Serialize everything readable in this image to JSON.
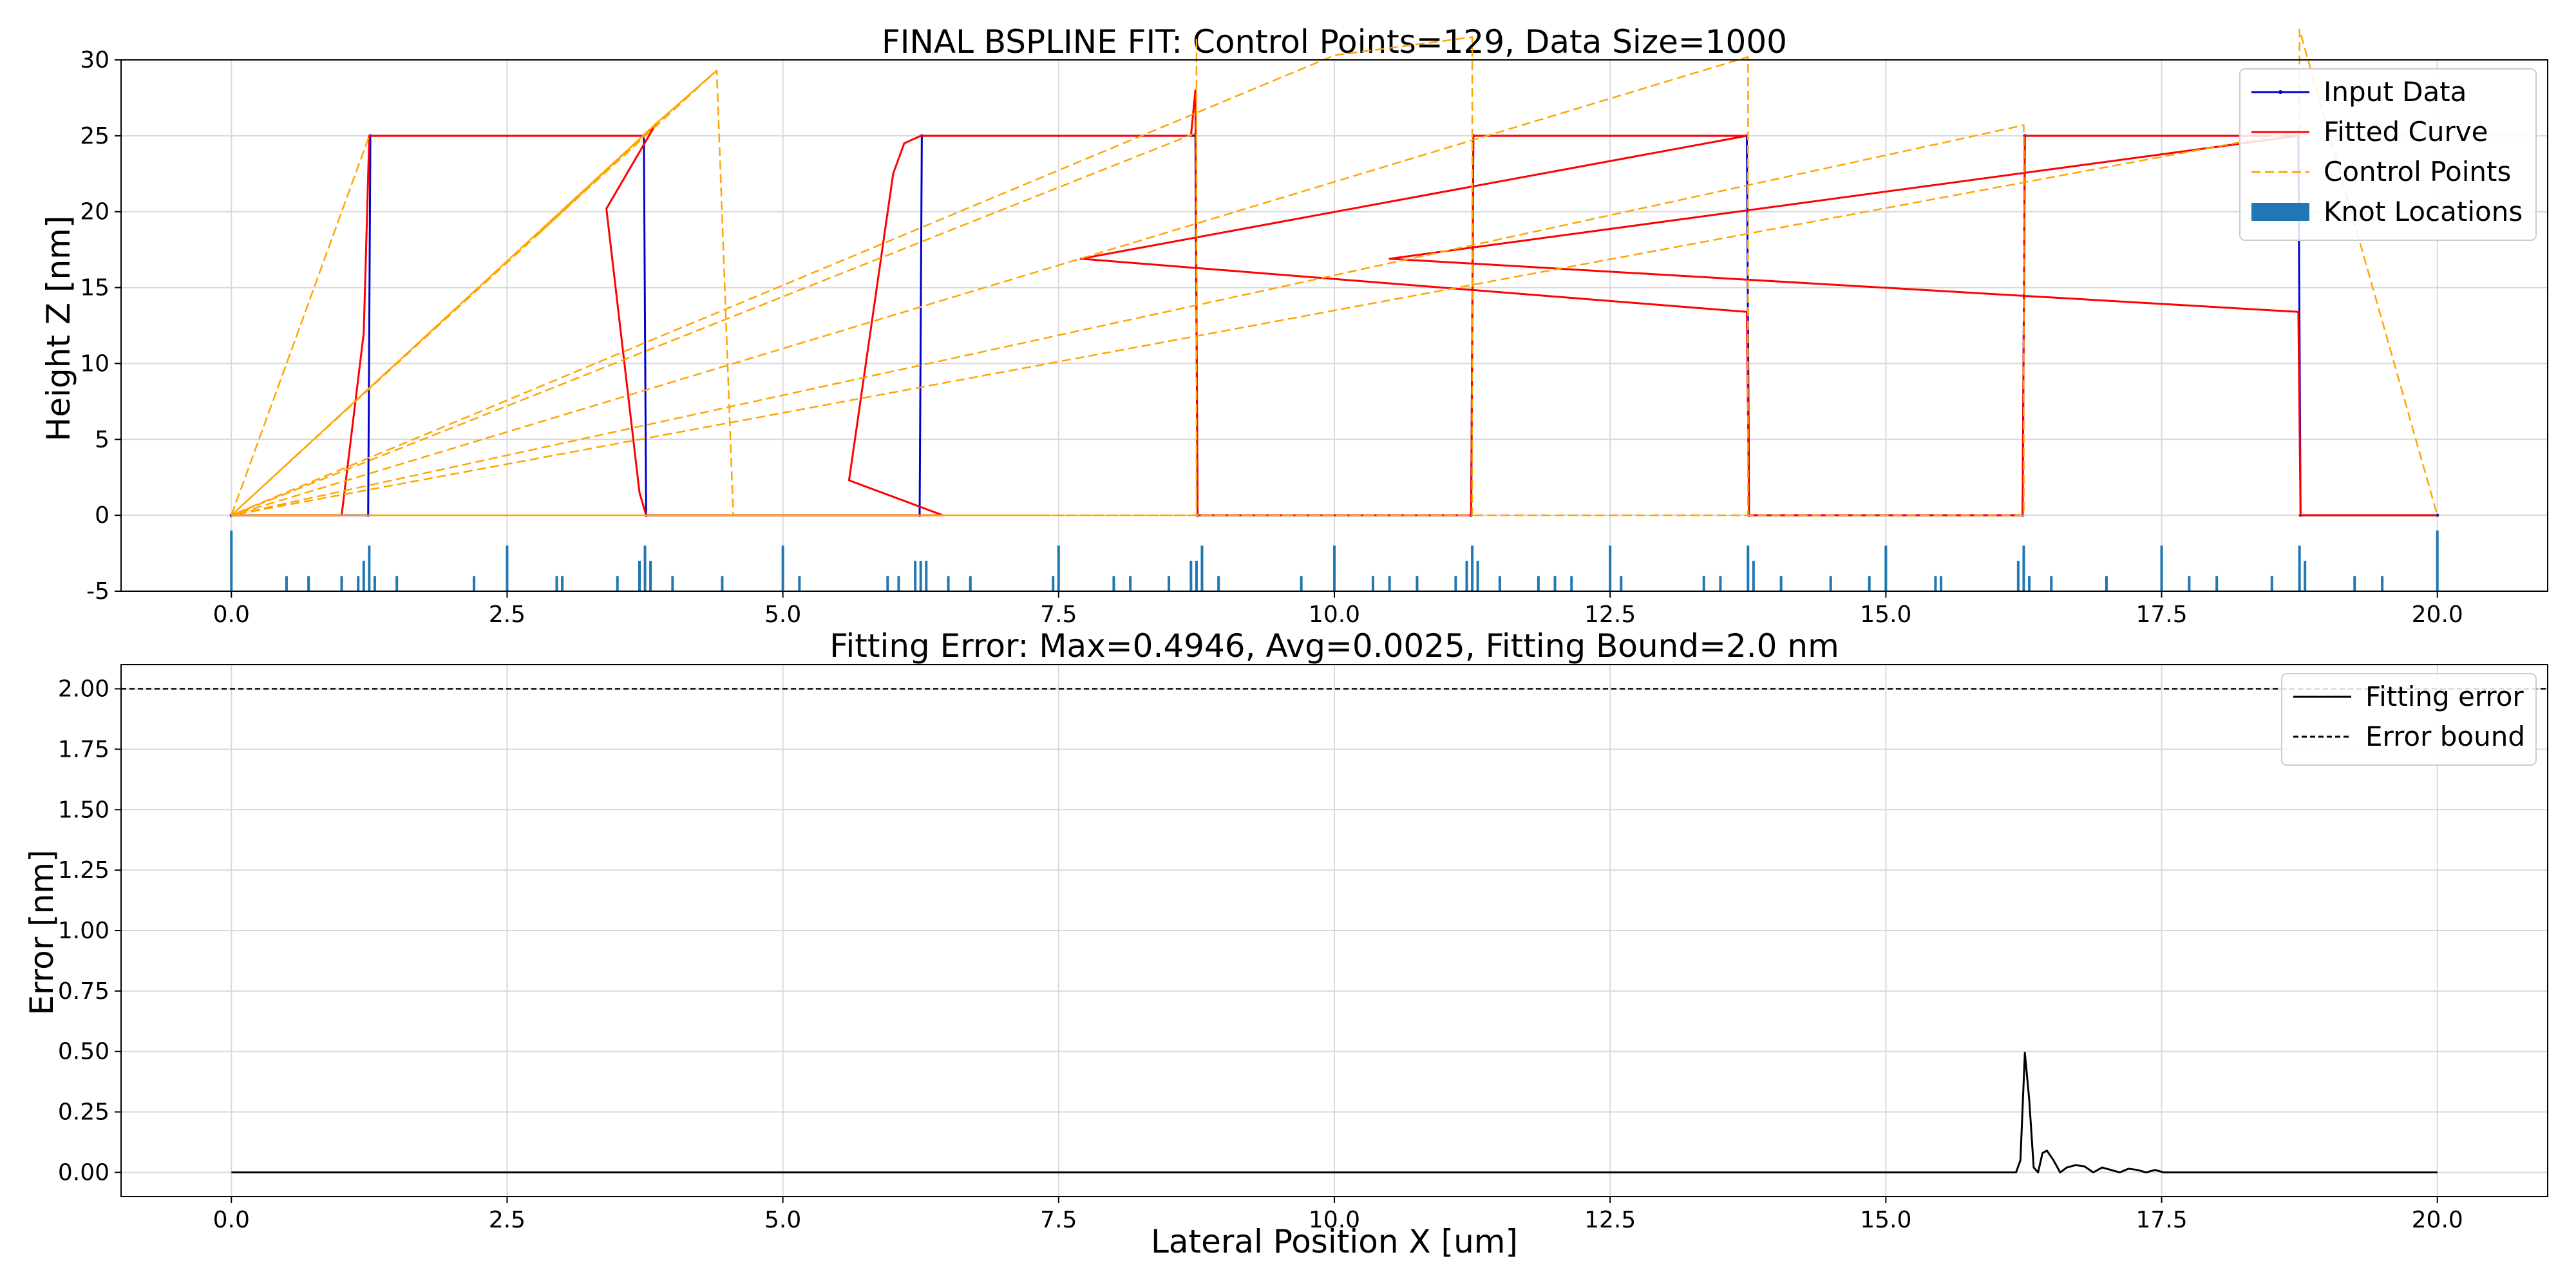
{
  "figure": {
    "xlabel": "Lateral Position X [um]"
  },
  "chart_data": [
    {
      "type": "line",
      "title": "FINAL BSPLINE FIT: Control Points=129, Data Size=1000",
      "xlabel": "",
      "ylabel": "Height Z [nm]",
      "xlim": [
        -1.0,
        21.0
      ],
      "ylim": [
        -5,
        30
      ],
      "xticks": [
        0.0,
        2.5,
        5.0,
        7.5,
        10.0,
        12.5,
        15.0,
        17.5,
        20.0
      ],
      "yticks": [
        -5,
        0,
        5,
        10,
        15,
        20,
        25,
        30
      ],
      "grid": true,
      "legend": "top-right",
      "series": [
        {
          "name": "Input Data",
          "color": "#0000cc",
          "style": "solid-with-dots",
          "x": [
            0.0,
            1.24,
            1.26,
            3.74,
            3.76,
            6.24,
            6.26,
            8.74,
            8.76,
            11.24,
            11.26,
            13.74,
            13.76,
            16.24,
            16.26,
            18.74,
            18.76,
            20.0
          ],
          "y": [
            0,
            0,
            25,
            25,
            0,
            0,
            25,
            25,
            0,
            0,
            25,
            25,
            0,
            0,
            25,
            25,
            0,
            0
          ]
        },
        {
          "name": "Fitted Curve",
          "color": "#ff0000",
          "style": "solid",
          "x": [
            0.0,
            1.0,
            1.2,
            1.25,
            3.75,
            3.85,
            3.4,
            3.7,
            3.76,
            6.25,
            6.45,
            5.6,
            6.0,
            6.1,
            6.25,
            8.7,
            8.74,
            8.76,
            11.24,
            11.26,
            13.74,
            7.7,
            13.74,
            13.76,
            16.24,
            16.26,
            18.74,
            10.5,
            18.74,
            18.76,
            20.0
          ],
          "y": [
            0,
            0,
            12,
            25,
            25,
            25.8,
            20.2,
            1.5,
            0,
            0,
            0,
            2.3,
            22.5,
            24.5,
            25,
            25,
            28.0,
            0,
            0,
            25,
            25,
            16.9,
            13.4,
            0,
            0,
            25,
            25,
            16.9,
            13.4,
            0,
            0
          ]
        },
        {
          "name": "Control Points",
          "color": "#ffa500",
          "style": "dashed",
          "x": [
            0.0,
            1.25,
            1.25,
            0.0,
            3.85,
            2.75,
            3.85,
            4.4,
            3.85,
            0.0,
            4.4,
            4.55,
            6.25,
            7.35,
            6.25,
            0.0,
            8.75,
            8.75,
            8.75,
            0.0,
            10.0,
            11.25,
            11.25,
            11.25,
            0.0,
            13.75,
            13.75,
            13.75,
            0.0,
            16.25,
            16.25,
            16.25,
            0.0,
            18.75,
            18.75,
            20.0
          ],
          "y": [
            0,
            25,
            25,
            0,
            25.8,
            18.3,
            25.8,
            29.3,
            25.8,
            0,
            29.3,
            0,
            0,
            0,
            0,
            0,
            25.2,
            31.5,
            0,
            0,
            30.3,
            31.5,
            25.2,
            0,
            0,
            30.2,
            25.1,
            0,
            0,
            25.7,
            24.2,
            0,
            0,
            25.3,
            32.0,
            0
          ]
        }
      ],
      "knots": {
        "name": "Knot Locations",
        "color": "#1f77b4",
        "baseline": -5,
        "x": [
          0.0,
          0.5,
          0.7,
          1.0,
          1.15,
          1.2,
          1.25,
          1.3,
          1.5,
          2.2,
          2.5,
          2.95,
          3.0,
          3.5,
          3.7,
          3.75,
          3.8,
          4.0,
          4.45,
          5.0,
          5.15,
          5.95,
          6.05,
          6.2,
          6.25,
          6.3,
          6.5,
          6.7,
          7.45,
          7.5,
          8.0,
          8.15,
          8.5,
          8.7,
          8.75,
          8.8,
          8.95,
          9.7,
          10.0,
          10.35,
          10.5,
          10.75,
          11.1,
          11.2,
          11.25,
          11.3,
          11.5,
          11.85,
          12.0,
          12.15,
          12.5,
          12.6,
          13.35,
          13.5,
          13.75,
          13.8,
          14.05,
          14.5,
          14.85,
          15.0,
          15.45,
          15.5,
          16.2,
          16.25,
          16.3,
          16.5,
          17.0,
          17.5,
          17.75,
          18.0,
          18.5,
          18.75,
          18.8,
          19.25,
          19.5,
          20.0
        ],
        "y": [
          -1.0,
          -4.0,
          -4.0,
          -4.0,
          -4.0,
          -3.0,
          -2.0,
          -4.0,
          -4.0,
          -4.0,
          -2.0,
          -4.0,
          -4.0,
          -4.0,
          -3.0,
          -2.0,
          -3.0,
          -4.0,
          -4.0,
          -2.0,
          -4.0,
          -4.0,
          -4.0,
          -3.0,
          -3.0,
          -3.0,
          -4.0,
          -4.0,
          -4.0,
          -2.0,
          -4.0,
          -4.0,
          -4.0,
          -3.0,
          -3.0,
          -2.0,
          -4.0,
          -4.0,
          -2.0,
          -4.0,
          -4.0,
          -4.0,
          -4.0,
          -3.0,
          -2.0,
          -3.0,
          -4.0,
          -4.0,
          -4.0,
          -4.0,
          -2.0,
          -4.0,
          -4.0,
          -4.0,
          -2.0,
          -3.0,
          -4.0,
          -4.0,
          -4.0,
          -2.0,
          -4.0,
          -4.0,
          -3.0,
          -2.0,
          -4.0,
          -4.0,
          -4.0,
          -2.0,
          -4.0,
          -4.0,
          -4.0,
          -2.0,
          -3.0,
          -4.0,
          -4.0,
          -1.0
        ]
      }
    },
    {
      "type": "line",
      "title": "Fitting Error: Max=0.4946, Avg=0.0025, Fitting Bound=2.0 nm",
      "xlabel": "Lateral Position X [um]",
      "ylabel": "Error [nm]",
      "xlim": [
        -1.0,
        21.0
      ],
      "ylim": [
        -0.1,
        2.1
      ],
      "xticks": [
        0.0,
        2.5,
        5.0,
        7.5,
        10.0,
        12.5,
        15.0,
        17.5,
        20.0
      ],
      "yticks": [
        0.0,
        0.25,
        0.5,
        0.75,
        1.0,
        1.25,
        1.5,
        1.75,
        2.0
      ],
      "grid": true,
      "legend": "top-right",
      "series": [
        {
          "name": "Fitting error",
          "color": "#000000",
          "style": "solid",
          "x": [
            0.0,
            16.18,
            16.22,
            16.26,
            16.3,
            16.34,
            16.38,
            16.42,
            16.46,
            16.52,
            16.58,
            16.64,
            16.72,
            16.8,
            16.88,
            16.96,
            17.04,
            17.12,
            17.2,
            17.28,
            17.36,
            17.44,
            17.52,
            17.6,
            20.0
          ],
          "y": [
            0.0,
            0.0,
            0.05,
            0.4946,
            0.3,
            0.02,
            0.0,
            0.08,
            0.09,
            0.05,
            0.0,
            0.02,
            0.03,
            0.025,
            0.0,
            0.02,
            0.01,
            0.0,
            0.015,
            0.01,
            0.0,
            0.01,
            0.0,
            0.0,
            0.0
          ]
        },
        {
          "name": "Error bound",
          "color": "#000000",
          "style": "dashed",
          "x": [
            -1.0,
            21.0
          ],
          "y": [
            2.0,
            2.0
          ]
        }
      ]
    }
  ]
}
